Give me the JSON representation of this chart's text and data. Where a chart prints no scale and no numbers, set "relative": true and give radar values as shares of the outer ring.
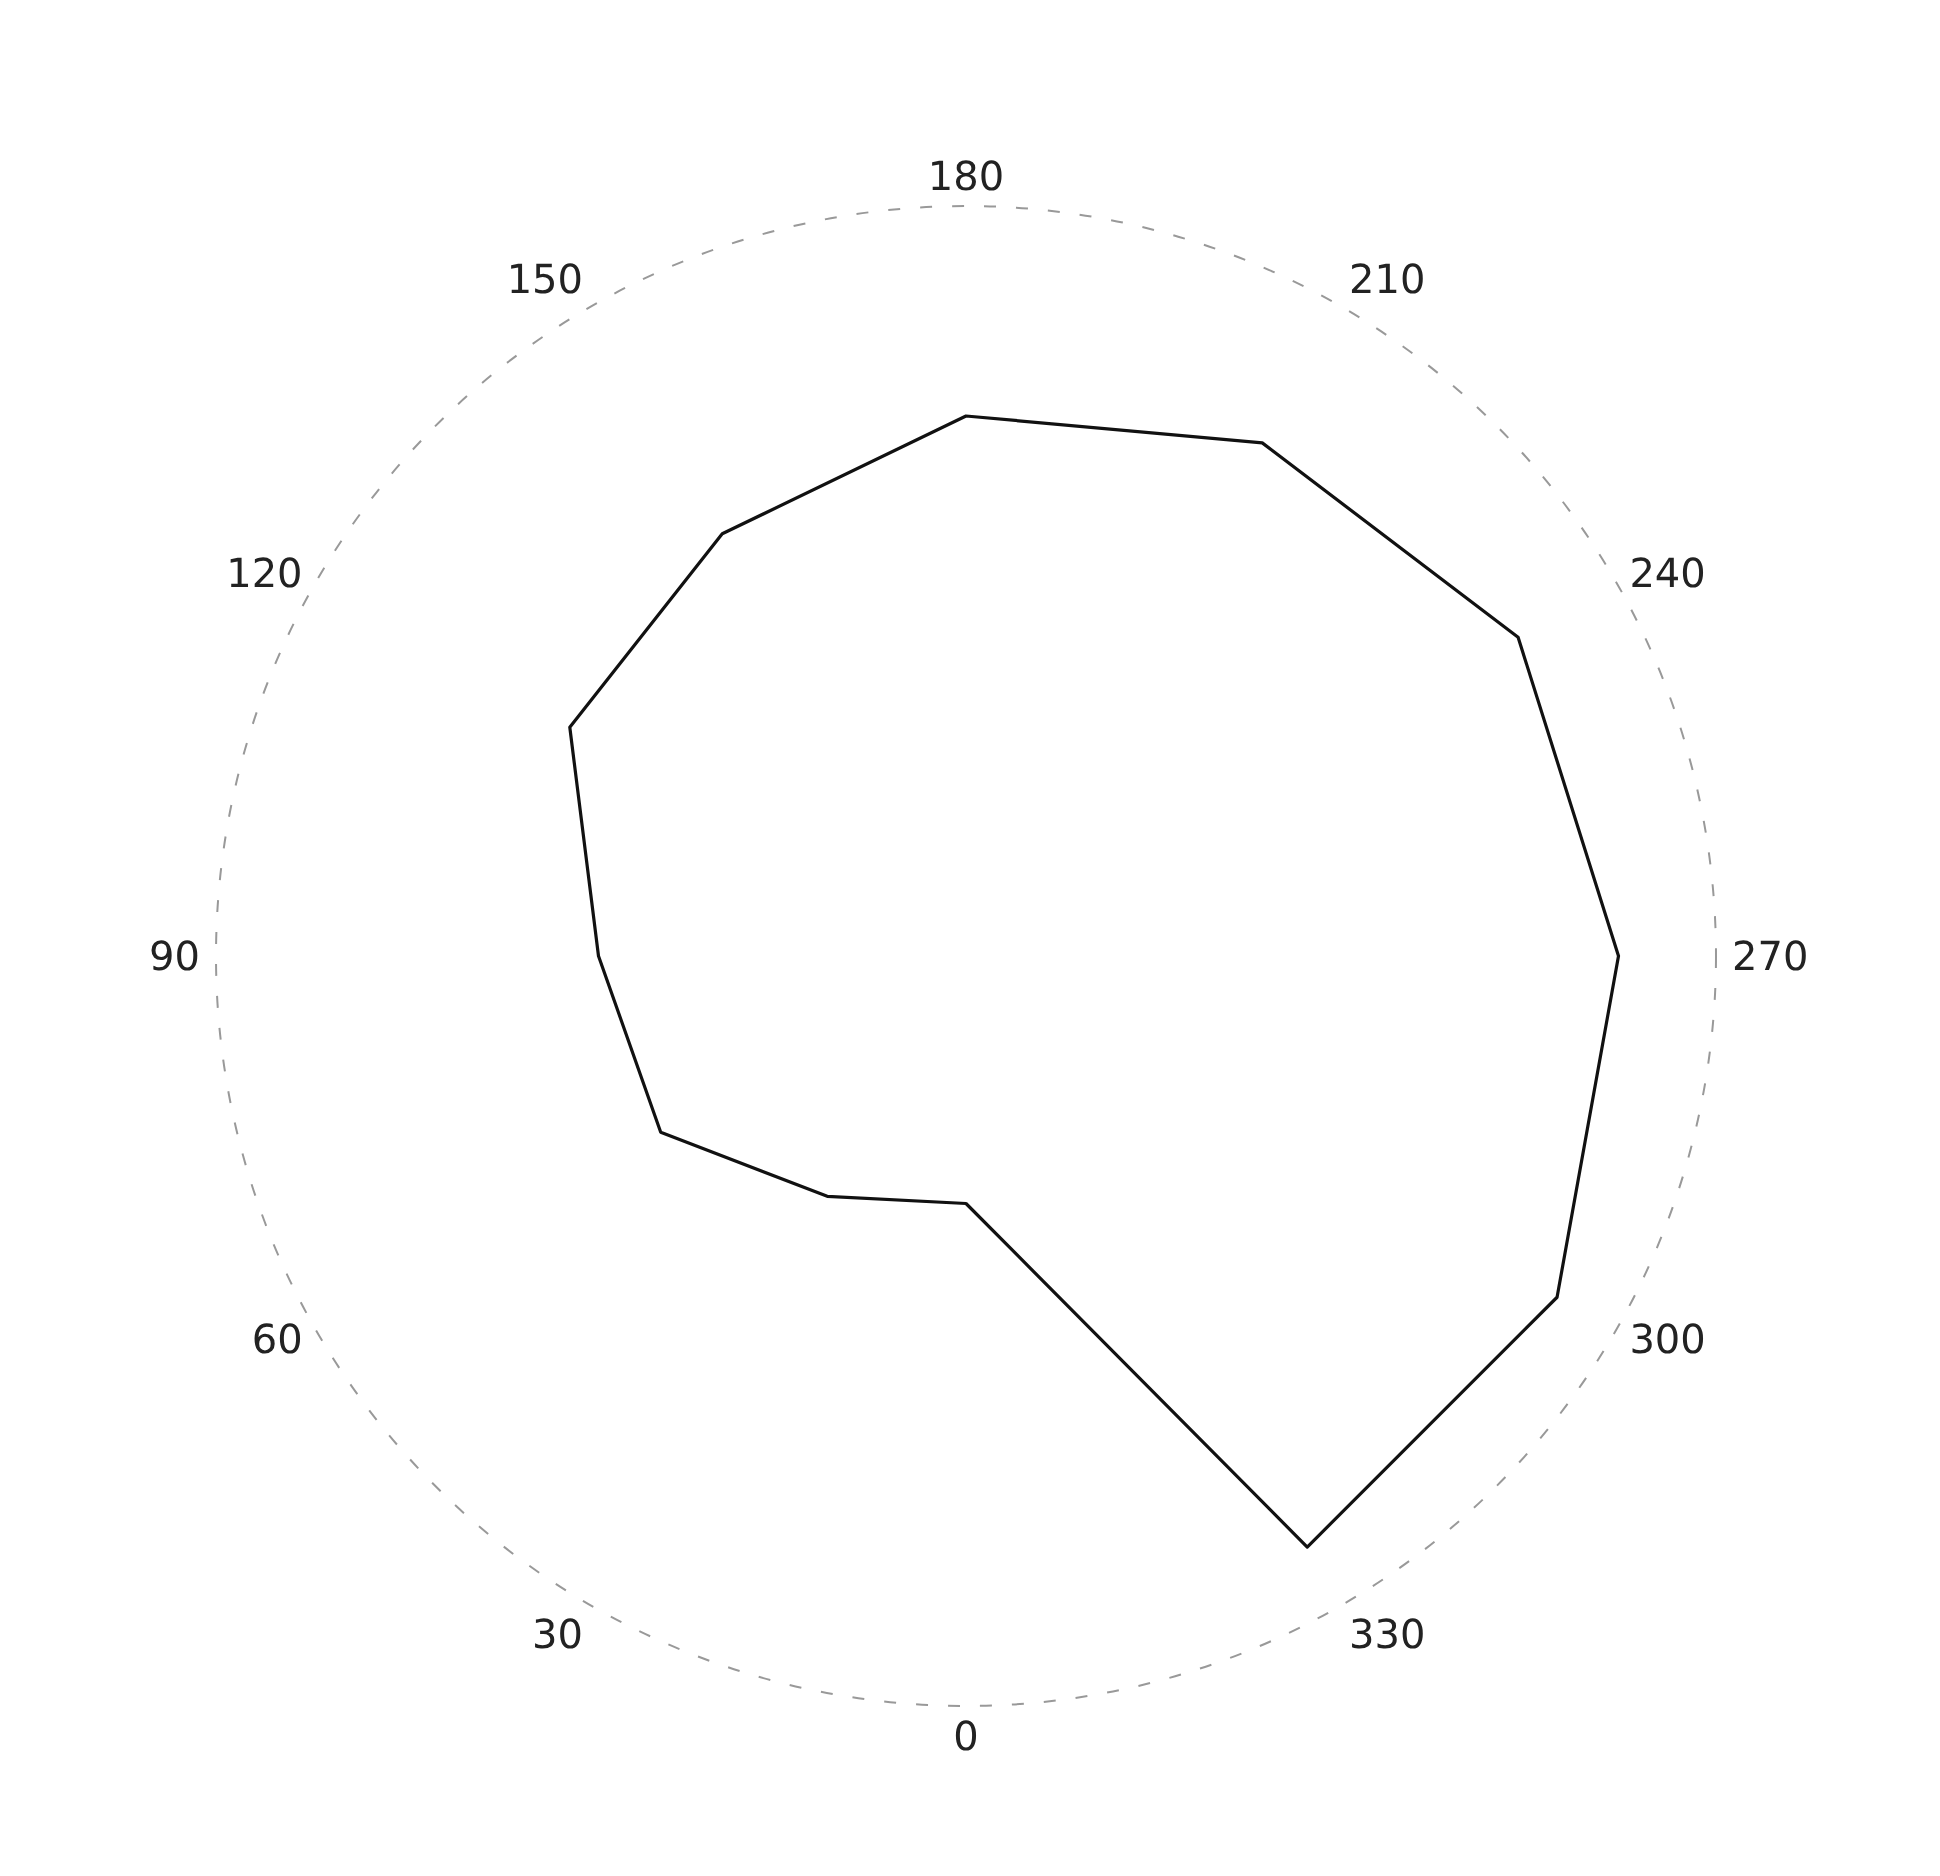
{
  "chart_data": {
    "type": "radar",
    "relative": true,
    "categories": [
      "180",
      "210",
      "240",
      "270",
      "300",
      "330",
      "0",
      "30",
      "60",
      "90",
      "120",
      "150"
    ],
    "series": [
      {
        "color": "#111111",
        "values": [
          0.72,
          0.79,
          0.85,
          0.87,
          0.91,
          0.91,
          0.33,
          0.37,
          0.47,
          0.49,
          0.61,
          0.65
        ]
      }
    ],
    "grid": true,
    "line_style": "solid",
    "marker": "none"
  }
}
